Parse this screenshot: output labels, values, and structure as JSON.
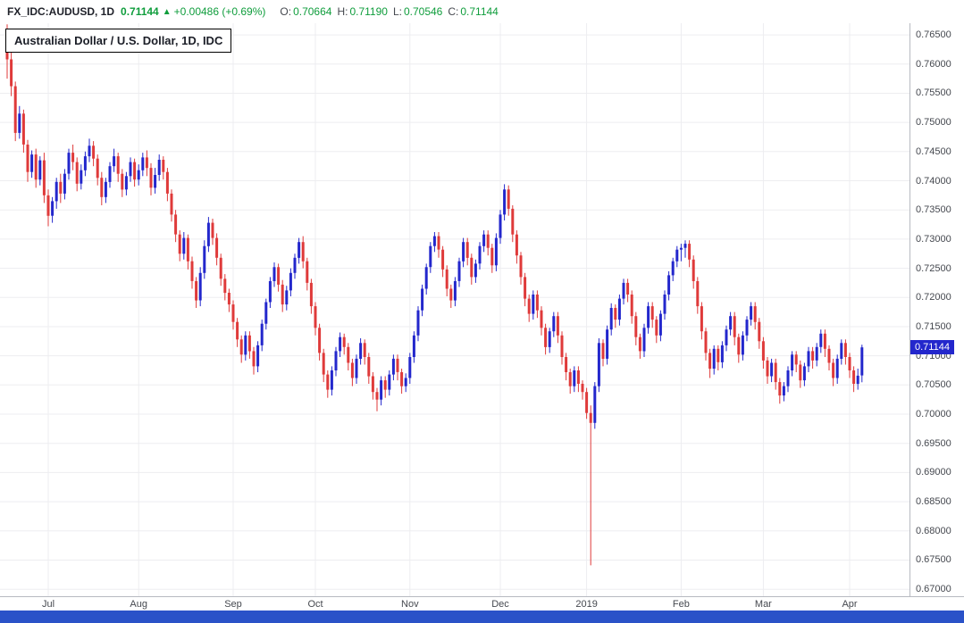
{
  "header": {
    "symbol": "FX_IDC:AUDUSD, 1D",
    "last": "0.71144",
    "direction_icon": "▲",
    "change": "+0.00486 (+0.69%)",
    "ohlc": [
      {
        "label": "O:",
        "value": "0.70664"
      },
      {
        "label": "H:",
        "value": "0.71190"
      },
      {
        "label": "L:",
        "value": "0.70546"
      },
      {
        "label": "C:",
        "value": "0.71144"
      }
    ],
    "up_text_color": "#0f9d3c"
  },
  "footer": {
    "bar_color": "#2a52c8"
  },
  "chart_data": {
    "type": "candlestick",
    "title": "Australian Dollar / U.S. Dollar, 1D, IDC",
    "symbol": "AUD/USD",
    "interval": "1D",
    "exchange": "IDC",
    "legend_position": "top-left",
    "grid": true,
    "ylim": [
      0.6688,
      0.767
    ],
    "y_ticks": [
      0.765,
      0.76,
      0.755,
      0.75,
      0.745,
      0.74,
      0.735,
      0.73,
      0.725,
      0.72,
      0.715,
      0.71,
      0.705,
      0.7,
      0.695,
      0.69,
      0.685,
      0.68,
      0.675,
      0.67
    ],
    "months": [
      {
        "label": "Jul",
        "index": 10
      },
      {
        "label": "Aug",
        "index": 32
      },
      {
        "label": "Sep",
        "index": 55
      },
      {
        "label": "Oct",
        "index": 75
      },
      {
        "label": "Nov",
        "index": 98
      },
      {
        "label": "Dec",
        "index": 120
      },
      {
        "label": "2019",
        "index": 141
      },
      {
        "label": "Feb",
        "index": 164
      },
      {
        "label": "Mar",
        "index": 184
      },
      {
        "label": "Apr",
        "index": 205
      }
    ],
    "up_color": "#2327cc",
    "down_color": "#df3a3a",
    "grid_color": "#ededf0",
    "last_price": 0.71144,
    "last_price_label": "0.71144",
    "candles": [
      [
        0.7655,
        0.7668,
        0.7575,
        0.7608
      ],
      [
        0.7608,
        0.7625,
        0.7545,
        0.7562
      ],
      [
        0.7562,
        0.757,
        0.7468,
        0.7482
      ],
      [
        0.7482,
        0.7528,
        0.7472,
        0.7515
      ],
      [
        0.7515,
        0.7522,
        0.7448,
        0.7462
      ],
      [
        0.7462,
        0.747,
        0.7398,
        0.7415
      ],
      [
        0.7415,
        0.7452,
        0.7405,
        0.7445
      ],
      [
        0.7445,
        0.7455,
        0.7388,
        0.7402
      ],
      [
        0.7402,
        0.7442,
        0.7392,
        0.7435
      ],
      [
        0.7435,
        0.7448,
        0.7362,
        0.7375
      ],
      [
        0.7375,
        0.7385,
        0.7322,
        0.734
      ],
      [
        0.734,
        0.7372,
        0.7328,
        0.7365
      ],
      [
        0.7365,
        0.7405,
        0.7352,
        0.7398
      ],
      [
        0.7398,
        0.7412,
        0.7362,
        0.7378
      ],
      [
        0.7378,
        0.742,
        0.7368,
        0.7412
      ],
      [
        0.7412,
        0.7455,
        0.7402,
        0.7448
      ],
      [
        0.7448,
        0.7462,
        0.7418,
        0.7432
      ],
      [
        0.7432,
        0.744,
        0.7382,
        0.7395
      ],
      [
        0.7395,
        0.7428,
        0.7385,
        0.7418
      ],
      [
        0.7418,
        0.745,
        0.7408,
        0.7442
      ],
      [
        0.7442,
        0.7472,
        0.7432,
        0.746
      ],
      [
        0.746,
        0.7468,
        0.7425,
        0.7438
      ],
      [
        0.7438,
        0.7445,
        0.7392,
        0.7405
      ],
      [
        0.7405,
        0.7415,
        0.7358,
        0.7372
      ],
      [
        0.7372,
        0.7405,
        0.7362,
        0.7398
      ],
      [
        0.7398,
        0.7432,
        0.7388,
        0.7425
      ],
      [
        0.7425,
        0.7455,
        0.7415,
        0.7442
      ],
      [
        0.7442,
        0.7448,
        0.7398,
        0.7412
      ],
      [
        0.7412,
        0.742,
        0.7372,
        0.7385
      ],
      [
        0.7385,
        0.7415,
        0.7375,
        0.7408
      ],
      [
        0.7408,
        0.744,
        0.7398,
        0.7432
      ],
      [
        0.7432,
        0.7438,
        0.739,
        0.7402
      ],
      [
        0.7402,
        0.7428,
        0.7392,
        0.7418
      ],
      [
        0.7418,
        0.7448,
        0.7408,
        0.744
      ],
      [
        0.744,
        0.7452,
        0.7408,
        0.7422
      ],
      [
        0.7422,
        0.743,
        0.7375,
        0.7388
      ],
      [
        0.7388,
        0.7422,
        0.7378,
        0.741
      ],
      [
        0.741,
        0.7445,
        0.74,
        0.7436
      ],
      [
        0.7436,
        0.7442,
        0.7402,
        0.7415
      ],
      [
        0.7415,
        0.7422,
        0.7365,
        0.7378
      ],
      [
        0.7378,
        0.7385,
        0.733,
        0.7342
      ],
      [
        0.7342,
        0.735,
        0.7295,
        0.7308
      ],
      [
        0.7308,
        0.7315,
        0.7262,
        0.7275
      ],
      [
        0.7275,
        0.7312,
        0.7265,
        0.7302
      ],
      [
        0.7302,
        0.7308,
        0.7248,
        0.7262
      ],
      [
        0.7262,
        0.727,
        0.7215,
        0.7228
      ],
      [
        0.7228,
        0.7235,
        0.7182,
        0.7195
      ],
      [
        0.7195,
        0.7252,
        0.7185,
        0.7242
      ],
      [
        0.7242,
        0.7298,
        0.7232,
        0.7288
      ],
      [
        0.7288,
        0.7338,
        0.7278,
        0.7328
      ],
      [
        0.7328,
        0.7335,
        0.729,
        0.7302
      ],
      [
        0.7302,
        0.731,
        0.7255,
        0.7268
      ],
      [
        0.7268,
        0.7275,
        0.722,
        0.7232
      ],
      [
        0.7232,
        0.724,
        0.7195,
        0.7208
      ],
      [
        0.7208,
        0.7215,
        0.7175,
        0.7188
      ],
      [
        0.7188,
        0.7195,
        0.7145,
        0.7158
      ],
      [
        0.7158,
        0.7165,
        0.7115,
        0.7128
      ],
      [
        0.7128,
        0.7135,
        0.7088,
        0.7102
      ],
      [
        0.7102,
        0.7142,
        0.7092,
        0.7135
      ],
      [
        0.7135,
        0.7142,
        0.7095,
        0.7108
      ],
      [
        0.7108,
        0.7115,
        0.7068,
        0.7082
      ],
      [
        0.7082,
        0.7125,
        0.7072,
        0.7118
      ],
      [
        0.7118,
        0.7162,
        0.7108,
        0.7155
      ],
      [
        0.7155,
        0.7198,
        0.7145,
        0.7192
      ],
      [
        0.7192,
        0.7235,
        0.7182,
        0.7228
      ],
      [
        0.7228,
        0.726,
        0.7218,
        0.7252
      ],
      [
        0.7252,
        0.7258,
        0.721,
        0.7222
      ],
      [
        0.7222,
        0.723,
        0.7175,
        0.7188
      ],
      [
        0.7188,
        0.722,
        0.7178,
        0.7212
      ],
      [
        0.7212,
        0.725,
        0.7202,
        0.7242
      ],
      [
        0.7242,
        0.7275,
        0.7232,
        0.7268
      ],
      [
        0.7268,
        0.7302,
        0.7258,
        0.7295
      ],
      [
        0.7295,
        0.7305,
        0.725,
        0.7262
      ],
      [
        0.7262,
        0.7268,
        0.7212,
        0.7225
      ],
      [
        0.7225,
        0.7232,
        0.7172,
        0.7185
      ],
      [
        0.7185,
        0.7192,
        0.7135,
        0.7148
      ],
      [
        0.7148,
        0.7155,
        0.7092,
        0.7105
      ],
      [
        0.7105,
        0.7112,
        0.7055,
        0.7068
      ],
      [
        0.7068,
        0.7075,
        0.7028,
        0.7042
      ],
      [
        0.7042,
        0.7082,
        0.7032,
        0.7075
      ],
      [
        0.7075,
        0.7115,
        0.7065,
        0.7108
      ],
      [
        0.7108,
        0.714,
        0.7098,
        0.7132
      ],
      [
        0.7132,
        0.7138,
        0.7102,
        0.7115
      ],
      [
        0.7115,
        0.7122,
        0.7075,
        0.7088
      ],
      [
        0.7088,
        0.7095,
        0.7048,
        0.7062
      ],
      [
        0.7062,
        0.7102,
        0.7052,
        0.7095
      ],
      [
        0.7095,
        0.713,
        0.7085,
        0.7122
      ],
      [
        0.7122,
        0.7128,
        0.7085,
        0.7098
      ],
      [
        0.7098,
        0.7105,
        0.7052,
        0.7065
      ],
      [
        0.7065,
        0.7072,
        0.7025,
        0.7038
      ],
      [
        0.7038,
        0.7045,
        0.7005,
        0.7025
      ],
      [
        0.7025,
        0.7065,
        0.7015,
        0.7058
      ],
      [
        0.7058,
        0.7065,
        0.7028,
        0.7042
      ],
      [
        0.7042,
        0.7075,
        0.7032,
        0.7068
      ],
      [
        0.7068,
        0.7102,
        0.7058,
        0.7095
      ],
      [
        0.7095,
        0.7102,
        0.7058,
        0.7072
      ],
      [
        0.7072,
        0.7078,
        0.7035,
        0.7048
      ],
      [
        0.7048,
        0.707,
        0.7038,
        0.7062
      ],
      [
        0.7062,
        0.7105,
        0.7052,
        0.7098
      ],
      [
        0.7098,
        0.7142,
        0.7088,
        0.7135
      ],
      [
        0.7135,
        0.7185,
        0.7125,
        0.7178
      ],
      [
        0.7178,
        0.7222,
        0.7168,
        0.7215
      ],
      [
        0.7215,
        0.7258,
        0.7205,
        0.7252
      ],
      [
        0.7252,
        0.7295,
        0.7242,
        0.7288
      ],
      [
        0.7288,
        0.7312,
        0.7278,
        0.7305
      ],
      [
        0.7305,
        0.7312,
        0.7268,
        0.7282
      ],
      [
        0.7282,
        0.7288,
        0.7235,
        0.7248
      ],
      [
        0.7248,
        0.7255,
        0.7202,
        0.7215
      ],
      [
        0.7215,
        0.7222,
        0.7182,
        0.7195
      ],
      [
        0.7195,
        0.7235,
        0.7185,
        0.7228
      ],
      [
        0.7228,
        0.7268,
        0.7218,
        0.7262
      ],
      [
        0.7262,
        0.7302,
        0.7252,
        0.7295
      ],
      [
        0.7295,
        0.7302,
        0.7255,
        0.7268
      ],
      [
        0.7268,
        0.7275,
        0.7222,
        0.7235
      ],
      [
        0.7235,
        0.7265,
        0.7225,
        0.7258
      ],
      [
        0.7258,
        0.7295,
        0.7248,
        0.7288
      ],
      [
        0.7288,
        0.7315,
        0.7278,
        0.7308
      ],
      [
        0.7308,
        0.7315,
        0.7272,
        0.7285
      ],
      [
        0.7285,
        0.7292,
        0.7242,
        0.7255
      ],
      [
        0.7255,
        0.731,
        0.7245,
        0.7302
      ],
      [
        0.7302,
        0.735,
        0.7292,
        0.7342
      ],
      [
        0.7342,
        0.7394,
        0.7332,
        0.7385
      ],
      [
        0.7385,
        0.7392,
        0.734,
        0.7352
      ],
      [
        0.7352,
        0.7358,
        0.7295,
        0.7308
      ],
      [
        0.7308,
        0.7315,
        0.7258,
        0.7272
      ],
      [
        0.7272,
        0.7278,
        0.7222,
        0.7235
      ],
      [
        0.7235,
        0.7242,
        0.7185,
        0.7198
      ],
      [
        0.7198,
        0.7205,
        0.7158,
        0.7172
      ],
      [
        0.7172,
        0.7212,
        0.7162,
        0.7205
      ],
      [
        0.7205,
        0.7212,
        0.7165,
        0.7178
      ],
      [
        0.7178,
        0.7185,
        0.7135,
        0.7148
      ],
      [
        0.7148,
        0.7155,
        0.7102,
        0.7115
      ],
      [
        0.7115,
        0.7148,
        0.7105,
        0.7142
      ],
      [
        0.7142,
        0.7175,
        0.7132,
        0.7168
      ],
      [
        0.7168,
        0.7175,
        0.7122,
        0.7135
      ],
      [
        0.7135,
        0.7142,
        0.7085,
        0.7098
      ],
      [
        0.7098,
        0.7105,
        0.7058,
        0.7072
      ],
      [
        0.7072,
        0.7078,
        0.7035,
        0.7048
      ],
      [
        0.7048,
        0.7082,
        0.7038,
        0.7075
      ],
      [
        0.7075,
        0.7082,
        0.7038,
        0.7052
      ],
      [
        0.7052,
        0.7058,
        0.7025,
        0.7038
      ],
      [
        0.7038,
        0.7045,
        0.6992,
        0.7002
      ],
      [
        0.7002,
        0.7015,
        0.6741,
        0.6985
      ],
      [
        0.6985,
        0.7055,
        0.6975,
        0.7048
      ],
      [
        0.7048,
        0.713,
        0.7038,
        0.7122
      ],
      [
        0.7122,
        0.7128,
        0.7082,
        0.7095
      ],
      [
        0.7095,
        0.7152,
        0.7085,
        0.7145
      ],
      [
        0.7145,
        0.719,
        0.7135,
        0.7182
      ],
      [
        0.7182,
        0.7188,
        0.7148,
        0.7162
      ],
      [
        0.7162,
        0.7205,
        0.7152,
        0.7198
      ],
      [
        0.7198,
        0.7232,
        0.7188,
        0.7225
      ],
      [
        0.7225,
        0.7232,
        0.7192,
        0.7205
      ],
      [
        0.7205,
        0.7212,
        0.7155,
        0.7168
      ],
      [
        0.7168,
        0.7175,
        0.7118,
        0.7132
      ],
      [
        0.7132,
        0.7138,
        0.7095,
        0.7108
      ],
      [
        0.7108,
        0.7155,
        0.7098,
        0.7148
      ],
      [
        0.7148,
        0.7192,
        0.7138,
        0.7185
      ],
      [
        0.7185,
        0.7192,
        0.7148,
        0.7162
      ],
      [
        0.7162,
        0.7168,
        0.7122,
        0.7135
      ],
      [
        0.7135,
        0.7178,
        0.7125,
        0.7172
      ],
      [
        0.7172,
        0.7212,
        0.7162,
        0.7205
      ],
      [
        0.7205,
        0.7245,
        0.7195,
        0.7238
      ],
      [
        0.7238,
        0.7268,
        0.7228,
        0.7262
      ],
      [
        0.7262,
        0.7288,
        0.7252,
        0.7282
      ],
      [
        0.7282,
        0.7292,
        0.7262,
        0.7285
      ],
      [
        0.7285,
        0.7298,
        0.7268,
        0.7292
      ],
      [
        0.7292,
        0.7298,
        0.7252,
        0.7265
      ],
      [
        0.7265,
        0.7272,
        0.7215,
        0.7228
      ],
      [
        0.7228,
        0.7235,
        0.7172,
        0.7185
      ],
      [
        0.7185,
        0.7192,
        0.7128,
        0.7142
      ],
      [
        0.7142,
        0.7148,
        0.7092,
        0.7105
      ],
      [
        0.7105,
        0.7112,
        0.7062,
        0.7078
      ],
      [
        0.7078,
        0.7118,
        0.7068,
        0.7112
      ],
      [
        0.7112,
        0.7118,
        0.7075,
        0.7089
      ],
      [
        0.7089,
        0.7125,
        0.7079,
        0.7118
      ],
      [
        0.7118,
        0.7152,
        0.7108,
        0.7145
      ],
      [
        0.7145,
        0.7175,
        0.7135,
        0.7168
      ],
      [
        0.7168,
        0.7175,
        0.7118,
        0.7132
      ],
      [
        0.7132,
        0.7138,
        0.7088,
        0.7102
      ],
      [
        0.7102,
        0.7142,
        0.7092,
        0.7135
      ],
      [
        0.7135,
        0.7168,
        0.7125,
        0.7162
      ],
      [
        0.7162,
        0.7192,
        0.7152,
        0.7185
      ],
      [
        0.7185,
        0.7192,
        0.7145,
        0.7158
      ],
      [
        0.7158,
        0.7165,
        0.7112,
        0.7125
      ],
      [
        0.7125,
        0.7132,
        0.7078,
        0.7092
      ],
      [
        0.7092,
        0.7098,
        0.7052,
        0.7065
      ],
      [
        0.7065,
        0.7095,
        0.7055,
        0.7088
      ],
      [
        0.7088,
        0.7095,
        0.7042,
        0.7055
      ],
      [
        0.7055,
        0.7062,
        0.7018,
        0.7032
      ],
      [
        0.7032,
        0.7055,
        0.7022,
        0.7048
      ],
      [
        0.7048,
        0.7082,
        0.7038,
        0.7075
      ],
      [
        0.7075,
        0.7108,
        0.7065,
        0.7102
      ],
      [
        0.7102,
        0.7108,
        0.7072,
        0.7085
      ],
      [
        0.7085,
        0.7092,
        0.7045,
        0.7058
      ],
      [
        0.7058,
        0.7088,
        0.7048,
        0.7082
      ],
      [
        0.7082,
        0.7115,
        0.7072,
        0.7108
      ],
      [
        0.7108,
        0.7115,
        0.7078,
        0.7092
      ],
      [
        0.7092,
        0.7122,
        0.7082,
        0.7115
      ],
      [
        0.7115,
        0.7145,
        0.7105,
        0.7138
      ],
      [
        0.7138,
        0.7145,
        0.7098,
        0.7112
      ],
      [
        0.7112,
        0.7118,
        0.7075,
        0.7088
      ],
      [
        0.7088,
        0.7095,
        0.7048,
        0.7062
      ],
      [
        0.7062,
        0.7102,
        0.7052,
        0.7095
      ],
      [
        0.7095,
        0.7128,
        0.7085,
        0.7122
      ],
      [
        0.7122,
        0.7128,
        0.7085,
        0.7098
      ],
      [
        0.7098,
        0.7105,
        0.7062,
        0.7075
      ],
      [
        0.7075,
        0.7082,
        0.7038,
        0.7052
      ],
      [
        0.7052,
        0.7078,
        0.7042,
        0.7066
      ],
      [
        0.70664,
        0.7119,
        0.70546,
        0.71144
      ]
    ]
  }
}
